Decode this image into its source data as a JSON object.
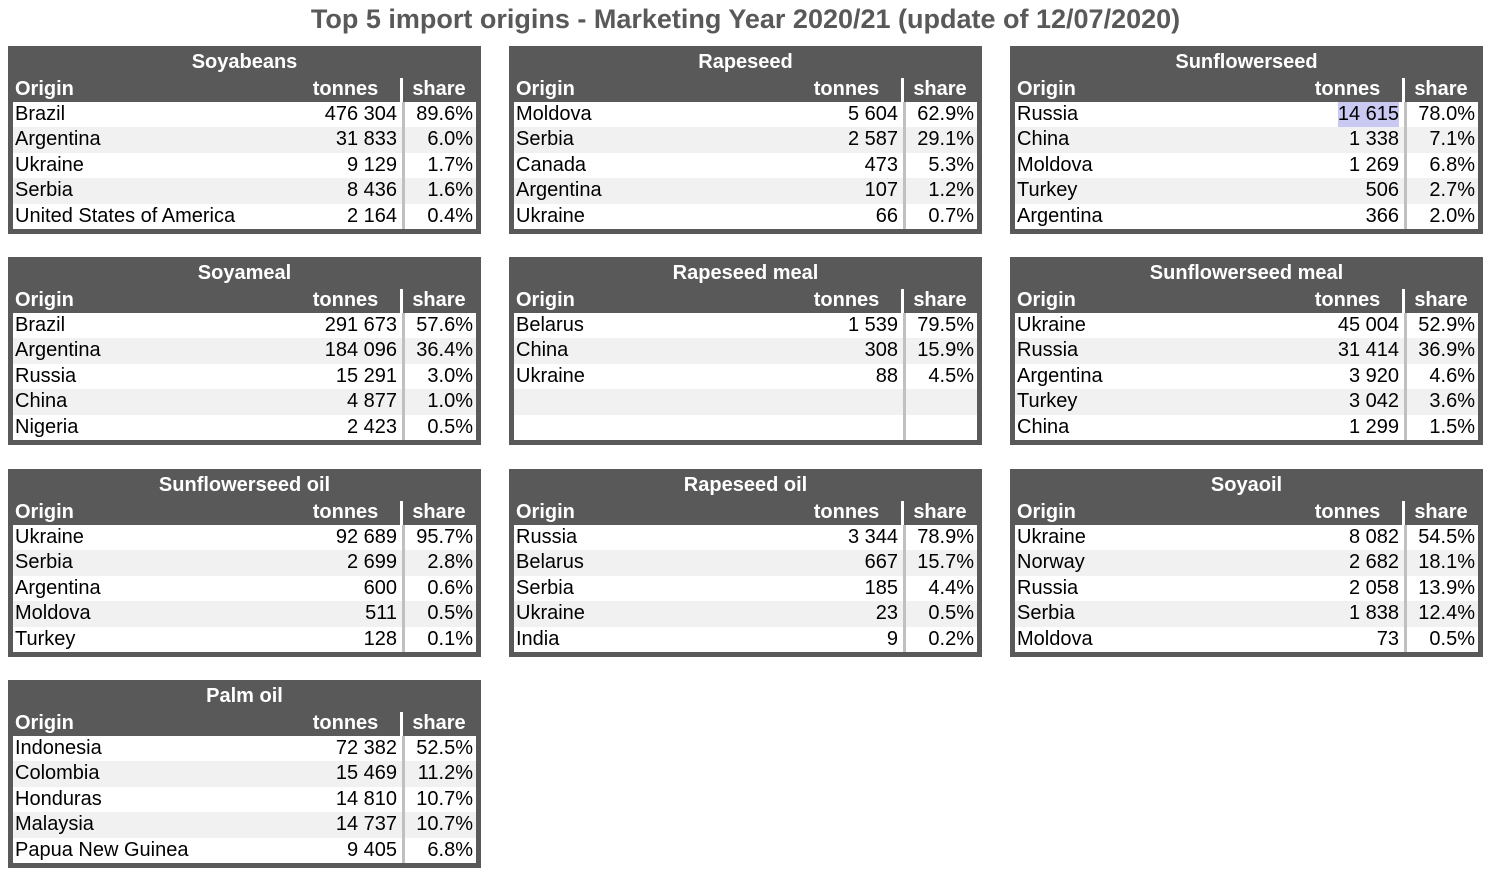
{
  "title": "Top 5 import origins - Marketing Year 2020/21 (update of 12/07/2020)",
  "headers": {
    "origin": "Origin",
    "tonnes": "tonnes",
    "share": "share"
  },
  "highlight_color": "#c9c9f1",
  "tables": [
    {
      "name": "Soyabeans",
      "rows": [
        {
          "origin": "Brazil",
          "tonnes": "476 304",
          "share": "89.6%"
        },
        {
          "origin": "Argentina",
          "tonnes": "31 833",
          "share": "6.0%"
        },
        {
          "origin": "Ukraine",
          "tonnes": "9 129",
          "share": "1.7%"
        },
        {
          "origin": "Serbia",
          "tonnes": "8 436",
          "share": "1.6%"
        },
        {
          "origin": "United States of America",
          "tonnes": "2 164",
          "share": "0.4%"
        }
      ]
    },
    {
      "name": "Rapeseed",
      "rows": [
        {
          "origin": "Moldova",
          "tonnes": "5 604",
          "share": "62.9%"
        },
        {
          "origin": "Serbia",
          "tonnes": "2 587",
          "share": "29.1%"
        },
        {
          "origin": "Canada",
          "tonnes": "473",
          "share": "5.3%"
        },
        {
          "origin": "Argentina",
          "tonnes": "107",
          "share": "1.2%"
        },
        {
          "origin": "Ukraine",
          "tonnes": "66",
          "share": "0.7%"
        }
      ]
    },
    {
      "name": "Sunflowerseed",
      "rows": [
        {
          "origin": "Russia",
          "tonnes": "14 615",
          "share": "78.0%",
          "highlight": true
        },
        {
          "origin": "China",
          "tonnes": "1 338",
          "share": "7.1%"
        },
        {
          "origin": "Moldova",
          "tonnes": "1 269",
          "share": "6.8%"
        },
        {
          "origin": "Turkey",
          "tonnes": "506",
          "share": "2.7%"
        },
        {
          "origin": "Argentina",
          "tonnes": "366",
          "share": "2.0%"
        }
      ]
    },
    {
      "name": "Soyameal",
      "rows": [
        {
          "origin": "Brazil",
          "tonnes": "291 673",
          "share": "57.6%"
        },
        {
          "origin": "Argentina",
          "tonnes": "184 096",
          "share": "36.4%"
        },
        {
          "origin": "Russia",
          "tonnes": "15 291",
          "share": "3.0%"
        },
        {
          "origin": "China",
          "tonnes": "4 877",
          "share": "1.0%"
        },
        {
          "origin": "Nigeria",
          "tonnes": "2 423",
          "share": "0.5%"
        }
      ]
    },
    {
      "name": "Rapeseed meal",
      "rows": [
        {
          "origin": "Belarus",
          "tonnes": "1 539",
          "share": "79.5%"
        },
        {
          "origin": "China",
          "tonnes": "308",
          "share": "15.9%"
        },
        {
          "origin": "Ukraine",
          "tonnes": "88",
          "share": "4.5%"
        },
        {
          "origin": "",
          "tonnes": "",
          "share": ""
        },
        {
          "origin": "",
          "tonnes": "",
          "share": ""
        }
      ]
    },
    {
      "name": "Sunflowerseed meal",
      "rows": [
        {
          "origin": "Ukraine",
          "tonnes": "45 004",
          "share": "52.9%"
        },
        {
          "origin": "Russia",
          "tonnes": "31 414",
          "share": "36.9%"
        },
        {
          "origin": "Argentina",
          "tonnes": "3 920",
          "share": "4.6%"
        },
        {
          "origin": "Turkey",
          "tonnes": "3 042",
          "share": "3.6%"
        },
        {
          "origin": "China",
          "tonnes": "1 299",
          "share": "1.5%"
        }
      ]
    },
    {
      "name": "Sunflowerseed oil",
      "rows": [
        {
          "origin": "Ukraine",
          "tonnes": "92 689",
          "share": "95.7%"
        },
        {
          "origin": "Serbia",
          "tonnes": "2 699",
          "share": "2.8%"
        },
        {
          "origin": "Argentina",
          "tonnes": "600",
          "share": "0.6%"
        },
        {
          "origin": "Moldova",
          "tonnes": "511",
          "share": "0.5%"
        },
        {
          "origin": "Turkey",
          "tonnes": "128",
          "share": "0.1%"
        }
      ]
    },
    {
      "name": "Rapeseed oil",
      "rows": [
        {
          "origin": "Russia",
          "tonnes": "3 344",
          "share": "78.9%"
        },
        {
          "origin": "Belarus",
          "tonnes": "667",
          "share": "15.7%"
        },
        {
          "origin": "Serbia",
          "tonnes": "185",
          "share": "4.4%"
        },
        {
          "origin": "Ukraine",
          "tonnes": "23",
          "share": "0.5%"
        },
        {
          "origin": "India",
          "tonnes": "9",
          "share": "0.2%"
        }
      ]
    },
    {
      "name": "Soyaoil",
      "rows": [
        {
          "origin": "Ukraine",
          "tonnes": "8 082",
          "share": "54.5%"
        },
        {
          "origin": "Norway",
          "tonnes": "2 682",
          "share": "18.1%"
        },
        {
          "origin": "Russia",
          "tonnes": "2 058",
          "share": "13.9%"
        },
        {
          "origin": "Serbia",
          "tonnes": "1 838",
          "share": "12.4%"
        },
        {
          "origin": "Moldova",
          "tonnes": "73",
          "share": "0.5%"
        }
      ]
    },
    {
      "name": "Palm oil",
      "rows": [
        {
          "origin": "Indonesia",
          "tonnes": "72 382",
          "share": "52.5%"
        },
        {
          "origin": "Colombia",
          "tonnes": "15 469",
          "share": "11.2%"
        },
        {
          "origin": "Honduras",
          "tonnes": "14 810",
          "share": "10.7%"
        },
        {
          "origin": "Malaysia",
          "tonnes": "14 737",
          "share": "10.7%"
        },
        {
          "origin": "Papua New Guinea",
          "tonnes": "9 405",
          "share": "6.8%"
        }
      ]
    }
  ]
}
